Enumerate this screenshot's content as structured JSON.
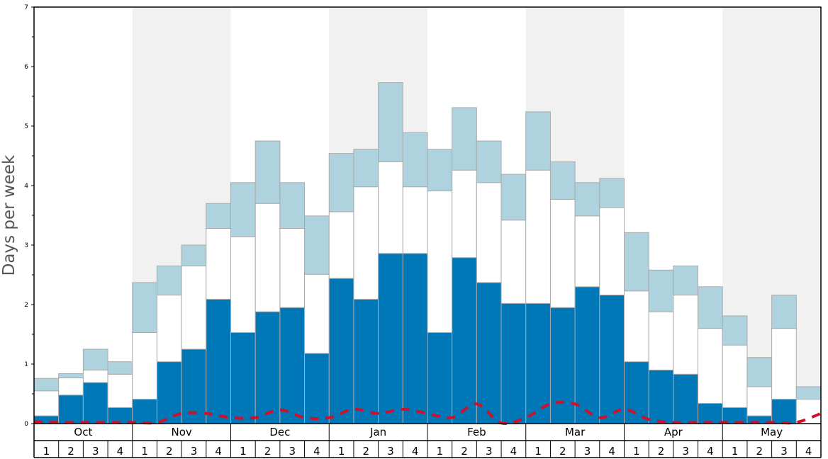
{
  "chart_data": {
    "type": "bar",
    "stacked": true,
    "ylabel": "Days per week",
    "ylim": [
      0,
      7
    ],
    "yticks": [
      "0",
      "1",
      "2",
      "3",
      "4",
      "5",
      "6",
      "7"
    ],
    "months": [
      "Oct",
      "Nov",
      "Dec",
      "Jan",
      "Feb",
      "Mar",
      "Apr",
      "May"
    ],
    "week_labels": [
      "1",
      "2",
      "3",
      "4"
    ],
    "colors": {
      "dark": "#0077b6",
      "white": "#ffffff",
      "light": "#aed3df",
      "band": "#f1f1f1",
      "line": "#d0102a",
      "border": "#aaaaaa"
    },
    "series": [
      {
        "values": [
          0.13,
          0.48,
          0.69,
          0.27,
          0.41,
          1.04,
          1.25,
          2.09,
          1.53,
          1.88,
          1.95,
          1.18,
          2.44,
          2.09,
          2.86,
          2.86,
          1.53,
          2.79,
          2.37,
          2.02,
          2.02,
          1.95,
          2.3,
          2.16,
          1.04,
          0.9,
          0.83,
          0.34,
          0.27,
          0.13,
          0.41,
          0.0
        ]
      },
      {
        "values": [
          0.42,
          0.29,
          0.21,
          0.56,
          1.12,
          1.12,
          1.4,
          1.19,
          1.61,
          1.82,
          1.33,
          1.33,
          1.12,
          1.89,
          1.54,
          1.12,
          2.38,
          1.47,
          1.68,
          1.4,
          2.24,
          1.82,
          1.19,
          1.47,
          1.19,
          0.98,
          1.33,
          1.26,
          1.05,
          0.49,
          1.19,
          0.41
        ]
      },
      {
        "values": [
          0.21,
          0.07,
          0.35,
          0.21,
          0.84,
          0.49,
          0.35,
          0.42,
          0.91,
          1.05,
          0.77,
          0.98,
          0.98,
          0.63,
          1.33,
          0.91,
          0.7,
          1.05,
          0.7,
          0.77,
          0.98,
          0.63,
          0.56,
          0.49,
          0.98,
          0.7,
          0.49,
          0.7,
          0.49,
          0.49,
          0.56,
          0.21
        ]
      }
    ],
    "line": [
      0.03,
      0.02,
      0.02,
      0.02,
      0.02,
      0.02,
      0.17,
      0.17,
      0.1,
      0.1,
      0.23,
      0.1,
      0.1,
      0.24,
      0.17,
      0.24,
      0.17,
      0.1,
      0.33,
      0.01,
      0.1,
      0.33,
      0.33,
      0.1,
      0.24,
      0.07,
      0.02,
      0.02,
      0.02,
      0.02,
      0.02,
      0.02,
      0.17
    ]
  }
}
